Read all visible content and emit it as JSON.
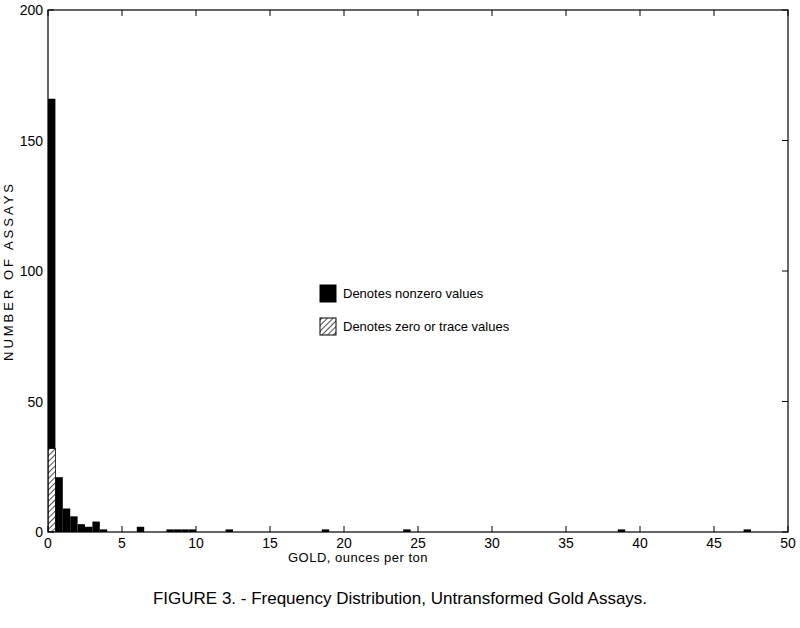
{
  "chart_data": {
    "type": "histogram",
    "title": "FIGURE 3. - Frequency Distribution, Untransformed Gold Assays.",
    "x_label": "GOLD, ounces per ton",
    "y_label": "NUMBER OF ASSAYS",
    "bins": [
      0,
      0.5,
      1,
      1.5,
      2,
      2.5,
      3,
      3.5,
      4,
      4.5,
      5,
      5.5,
      6,
      6.5,
      7,
      7.5,
      8,
      8.5,
      9,
      9.5,
      10,
      10.5,
      11,
      11.5,
      12,
      12.5,
      13,
      13.5,
      14,
      14.5,
      15,
      15.5,
      16,
      16.5,
      17,
      17.5,
      18,
      18.5,
      19,
      19.5,
      20,
      20.5,
      21,
      21.5,
      22,
      22.5,
      23,
      23.5,
      24,
      24.5,
      25,
      25.5,
      26,
      26.5,
      27,
      27.5,
      28,
      28.5,
      29,
      29.5,
      30,
      30.5,
      31,
      31.5,
      32,
      32.5,
      33,
      33.5,
      34,
      34.5,
      35,
      35.5,
      36,
      36.5,
      37,
      37.5,
      38,
      38.5,
      39,
      39.5,
      40,
      40.5,
      41,
      41.5,
      42,
      42.5,
      43,
      43.5,
      44,
      44.5,
      45,
      45.5,
      46,
      46.5,
      47,
      47.5,
      48,
      48.5,
      49,
      49.5,
      50
    ],
    "series": [
      {
        "name": "Denotes nonzero values",
        "color": "#000000",
        "values": [
          134,
          21,
          9,
          6,
          3,
          2,
          4,
          1,
          0,
          0,
          0,
          0,
          2,
          0,
          0,
          0,
          1,
          1,
          1,
          1,
          0,
          0,
          0,
          0,
          1,
          0,
          0,
          0,
          0,
          0,
          0,
          0,
          0,
          0,
          0,
          0,
          0,
          1,
          0,
          0,
          0,
          0,
          0,
          0,
          0,
          0,
          0,
          0,
          1,
          0,
          0,
          0,
          0,
          0,
          0,
          0,
          0,
          0,
          0,
          0,
          0,
          0,
          0,
          0,
          0,
          0,
          0,
          0,
          0,
          0,
          0,
          0,
          0,
          0,
          0,
          0,
          0,
          1,
          0,
          0,
          0,
          0,
          0,
          0,
          0,
          0,
          0,
          0,
          0,
          0,
          0,
          0,
          0,
          0,
          1,
          0,
          0,
          0,
          0,
          0
        ]
      },
      {
        "name": "Denotes zero or trace values",
        "color": "#000000",
        "line_style": "hatch",
        "values": [
          32,
          0,
          0,
          0,
          0,
          0,
          0,
          0,
          0,
          0,
          0,
          0,
          0,
          0,
          0,
          0,
          0,
          0,
          0,
          0,
          0,
          0,
          0,
          0,
          0,
          0,
          0,
          0,
          0,
          0,
          0,
          0,
          0,
          0,
          0,
          0,
          0,
          0,
          0,
          0,
          0,
          0,
          0,
          0,
          0,
          0,
          0,
          0,
          0,
          0,
          0,
          0,
          0,
          0,
          0,
          0,
          0,
          0,
          0,
          0,
          0,
          0,
          0,
          0,
          0,
          0,
          0,
          0,
          0,
          0,
          0,
          0,
          0,
          0,
          0,
          0,
          0,
          0,
          0,
          0,
          0,
          0,
          0,
          0,
          0,
          0,
          0,
          0,
          0,
          0,
          0,
          0,
          0,
          0,
          0,
          0,
          0,
          0,
          0,
          0
        ]
      }
    ],
    "stacked": true,
    "xlim": [
      0,
      50
    ],
    "xticks": [
      0,
      5,
      10,
      15,
      20,
      25,
      30,
      35,
      40,
      45,
      50
    ],
    "ylim": [
      0,
      200
    ],
    "yticks": [
      0,
      50,
      100,
      150,
      200
    ],
    "grid": false,
    "legend": "center"
  }
}
